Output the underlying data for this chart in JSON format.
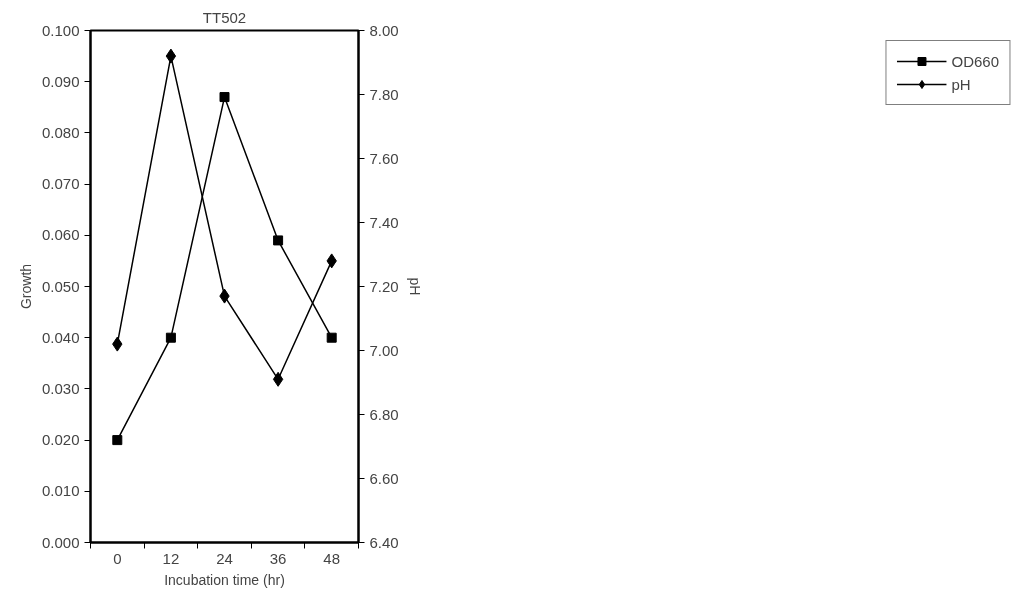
{
  "chart_data": {
    "type": "line",
    "title": "TT502",
    "xlabel": "Incubation time (hr)",
    "ylabel": "Growth",
    "y2label": "pH",
    "categories": [
      "0",
      "12",
      "24",
      "36",
      "48"
    ],
    "series": [
      {
        "name": "OD660",
        "color": "#000000",
        "marker": "square",
        "values": [
          0.02,
          0.04,
          0.087,
          0.059,
          0.04
        ]
      },
      {
        "name": "pH",
        "color": "#000000",
        "marker": "diamond",
        "axis": "y2",
        "values": [
          7.02,
          7.92,
          7.17,
          6.91,
          7.28
        ]
      }
    ],
    "ylim": [
      0,
      0.1
    ],
    "yticks": [
      {
        "value": 0,
        "label": "0.000"
      },
      {
        "value": 0.01,
        "label": "0.010"
      },
      {
        "value": 0.02,
        "label": "0.020"
      },
      {
        "value": 0.03,
        "label": "0.030"
      },
      {
        "value": 0.04,
        "label": "0.040"
      },
      {
        "value": 0.05,
        "label": "0.050"
      },
      {
        "value": 0.06,
        "label": "0.060"
      },
      {
        "value": 0.07,
        "label": "0.070"
      },
      {
        "value": 0.08,
        "label": "0.080"
      },
      {
        "value": 0.09,
        "label": "0.090"
      },
      {
        "value": 0.1,
        "label": "0.100"
      }
    ],
    "y2lim": [
      6.4,
      8.0
    ],
    "y2ticks": [
      {
        "value": 6.4,
        "label": "6.40"
      },
      {
        "value": 6.6,
        "label": "6.60"
      },
      {
        "value": 6.8,
        "label": "6.80"
      },
      {
        "value": 7.0,
        "label": "7.00"
      },
      {
        "value": 7.2,
        "label": "7.20"
      },
      {
        "value": 7.4,
        "label": "7.40"
      },
      {
        "value": 7.6,
        "label": "7.60"
      },
      {
        "value": 7.8,
        "label": "7.80"
      },
      {
        "value": 8.0,
        "label": "8.00"
      }
    ],
    "grid": false,
    "legend": "right",
    "line_style": "solid"
  }
}
